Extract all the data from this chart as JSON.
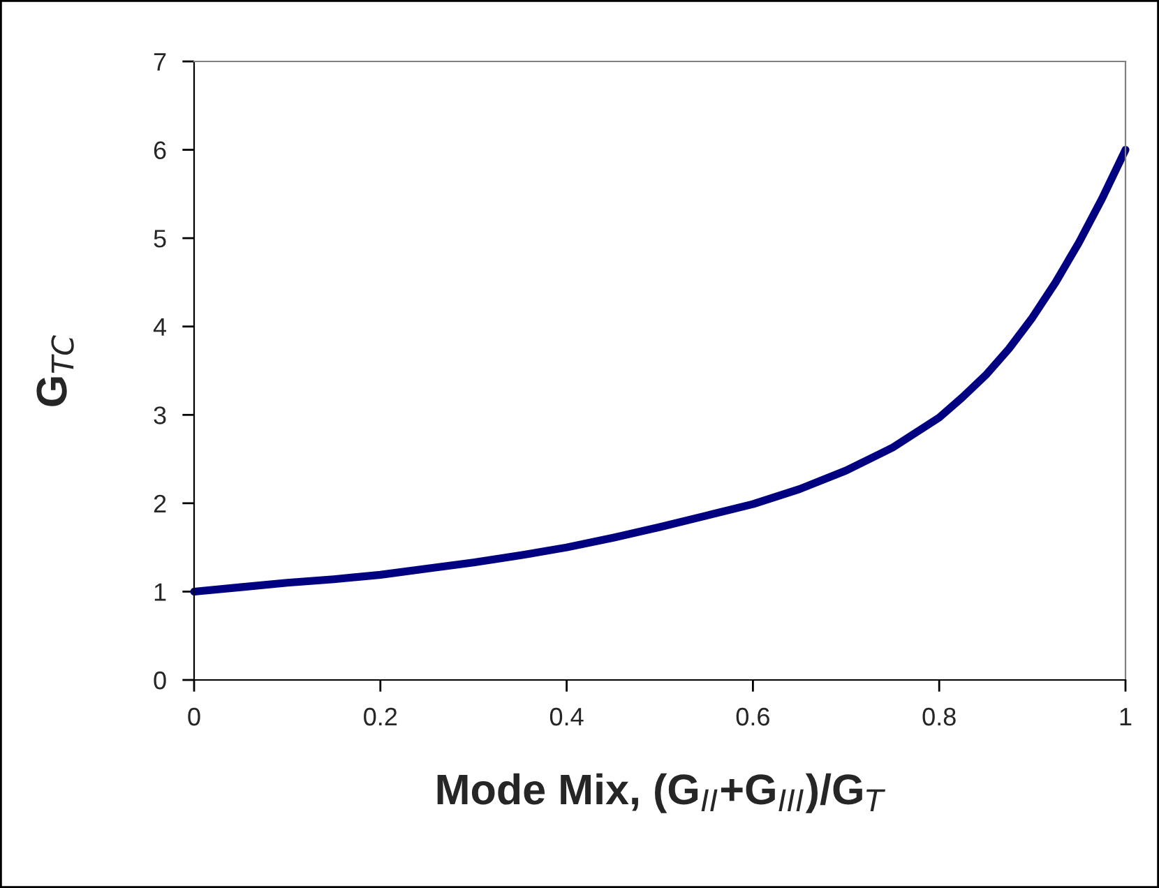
{
  "chart_data": {
    "type": "line",
    "xlabel": "Mode Mix, (G$_{II}$+G$_{III}$)/G$_{T}$",
    "ylabel": "G$_{TC}$",
    "series": [
      {
        "color": "#000080",
        "x": [
          0,
          0.05,
          0.1,
          0.15,
          0.2,
          0.25,
          0.3,
          0.35,
          0.4,
          0.45,
          0.5,
          0.55,
          0.6,
          0.65,
          0.7,
          0.75,
          0.8,
          0.825,
          0.85,
          0.875,
          0.9,
          0.925,
          0.95,
          0.975,
          1.0
        ],
        "values": [
          1,
          1.05,
          1.1,
          1.14,
          1.19,
          1.26,
          1.33,
          1.41,
          1.5,
          1.61,
          1.73,
          1.86,
          1.99,
          2.16,
          2.37,
          2.63,
          2.97,
          3.2,
          3.45,
          3.75,
          4.1,
          4.5,
          4.95,
          5.45,
          6
        ]
      }
    ],
    "xlim": [
      0,
      1
    ],
    "xticks": [
      0,
      0.2,
      0.4,
      0.6,
      0.8,
      1
    ],
    "ylim": [
      0,
      7
    ],
    "yticks": [
      0,
      1,
      2,
      3,
      4,
      5,
      6,
      7
    ],
    "grid": false,
    "legend": false,
    "marker": "none",
    "line_style": "solid"
  }
}
